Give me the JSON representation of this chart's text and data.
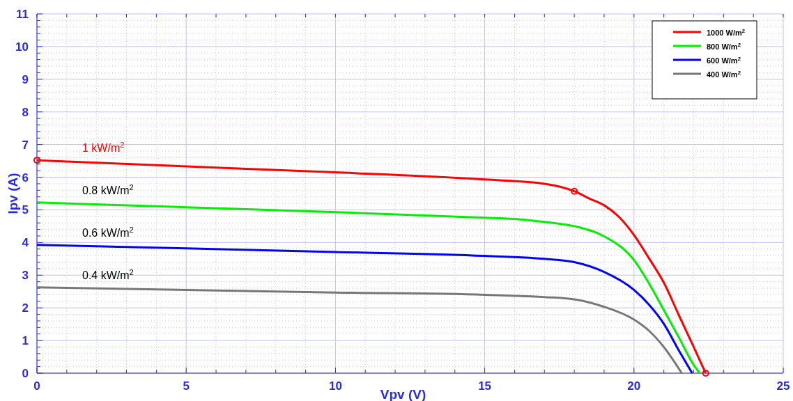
{
  "chart_data": {
    "type": "line",
    "xlabel": "Vpv (V)",
    "ylabel": "Ipv (A)",
    "xlim": [
      0,
      25
    ],
    "xticks": [
      0,
      5,
      10,
      15,
      20,
      25
    ],
    "ylim": [
      0,
      11
    ],
    "yticks": [
      0,
      1,
      2,
      3,
      4,
      5,
      6,
      7,
      8,
      9,
      10,
      11
    ],
    "grid": true,
    "legend": "top right",
    "line_style": "solid",
    "marker": "none",
    "series": [
      {
        "name": "1000 W/m$^{2}$",
        "color": "#ff0000",
        "x": [
          0,
          5,
          10,
          15,
          17,
          18,
          18.5,
          19,
          19.5,
          20,
          20.5,
          21,
          21.5,
          22,
          22.4
        ],
        "values": [
          6.52,
          6.33,
          6.15,
          5.93,
          5.8,
          5.57,
          5.35,
          5.14,
          4.78,
          4.23,
          3.52,
          2.77,
          1.78,
          0.8,
          0
        ]
      },
      {
        "name": "800 W/m$^{2}$",
        "color": "#00ee00",
        "x": [
          0,
          5,
          10,
          15,
          16,
          17,
          18,
          19,
          20,
          20.5,
          21,
          21.5,
          22,
          22.2
        ],
        "values": [
          5.23,
          5.08,
          4.93,
          4.76,
          4.72,
          4.63,
          4.5,
          4.19,
          3.46,
          2.75,
          1.93,
          1.1,
          0.25,
          0
        ]
      },
      {
        "name": "600 W/m$^{2}$",
        "color": "#0000ff",
        "x": [
          0,
          5,
          10,
          15,
          17,
          18,
          19,
          20,
          20.5,
          21,
          21.5,
          21.95
        ],
        "values": [
          3.93,
          3.82,
          3.71,
          3.59,
          3.5,
          3.4,
          3.1,
          2.55,
          2.1,
          1.51,
          0.7,
          0
        ]
      },
      {
        "name": "400 W/m$^{2}$",
        "color": "#777777",
        "x": [
          0,
          5,
          10,
          15,
          17,
          18,
          19,
          20,
          20.5,
          21,
          21.6
        ],
        "values": [
          2.63,
          2.55,
          2.47,
          2.4,
          2.33,
          2.26,
          2.03,
          1.64,
          1.3,
          0.8,
          0
        ]
      },
      {
        "type": "scatter",
        "marker": "circle",
        "color": "#ff0000",
        "x": [
          0,
          18,
          22.4
        ],
        "values": [
          6.52,
          5.57,
          0
        ]
      }
    ],
    "annotations": [
      "1 kW/m$^{2}$",
      "0.8 kW/m$^{2}$",
      "0.6 kW/m$^{2}$",
      "0.4 kW/m$^{2}$"
    ]
  }
}
